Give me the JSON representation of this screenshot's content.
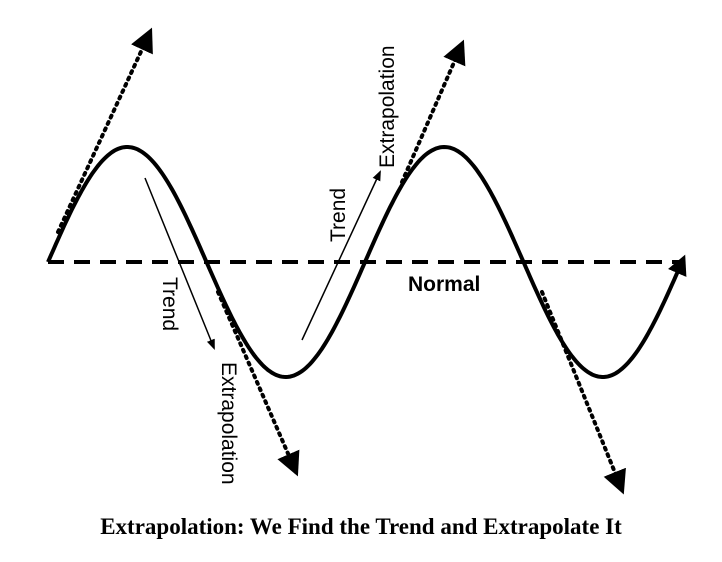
{
  "labels": {
    "trend_down": "Trend",
    "extrapolation_down": "Extrapolation",
    "trend_up": "Trend",
    "extrapolation_up": "Extrapolation",
    "normal": "Normal"
  },
  "caption": "Extrapolation: We Find the Trend and Extrapolate It"
}
